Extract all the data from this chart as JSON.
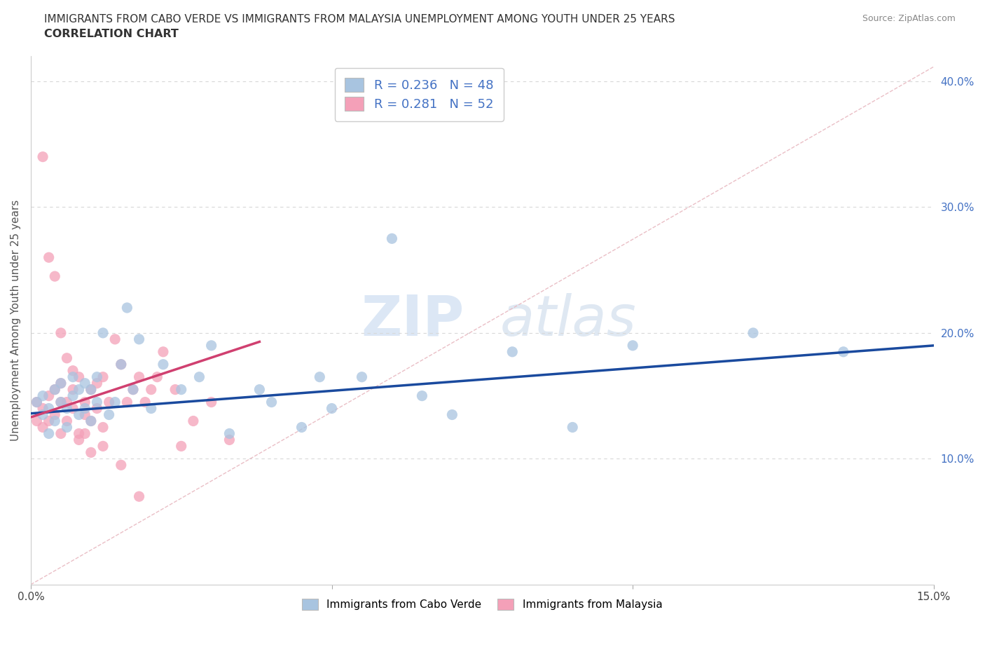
{
  "title_line1": "IMMIGRANTS FROM CABO VERDE VS IMMIGRANTS FROM MALAYSIA UNEMPLOYMENT AMONG YOUTH UNDER 25 YEARS",
  "title_line2": "CORRELATION CHART",
  "source": "Source: ZipAtlas.com",
  "ylabel": "Unemployment Among Youth under 25 years",
  "xmin": 0.0,
  "xmax": 0.15,
  "ymin": 0.0,
  "ymax": 0.42,
  "ytick_labels_right": [
    "10.0%",
    "20.0%",
    "30.0%",
    "40.0%"
  ],
  "ytick_vals_right": [
    0.1,
    0.2,
    0.3,
    0.4
  ],
  "cabo_verde_R": 0.236,
  "cabo_verde_N": 48,
  "malaysia_R": 0.281,
  "malaysia_N": 52,
  "cabo_verde_color": "#a8c4e0",
  "malaysia_color": "#f4a0b8",
  "cabo_verde_line_color": "#1a4a9e",
  "malaysia_line_color": "#d04070",
  "diagonal_line_color": "#e8b8c0",
  "cabo_verde_scatter_x": [
    0.001,
    0.002,
    0.002,
    0.003,
    0.003,
    0.004,
    0.004,
    0.005,
    0.005,
    0.006,
    0.006,
    0.007,
    0.007,
    0.008,
    0.008,
    0.009,
    0.009,
    0.01,
    0.01,
    0.011,
    0.011,
    0.012,
    0.013,
    0.014,
    0.015,
    0.016,
    0.017,
    0.018,
    0.02,
    0.022,
    0.025,
    0.028,
    0.03,
    0.033,
    0.038,
    0.04,
    0.045,
    0.048,
    0.05,
    0.055,
    0.06,
    0.065,
    0.07,
    0.08,
    0.09,
    0.1,
    0.12,
    0.135
  ],
  "cabo_verde_scatter_y": [
    0.145,
    0.135,
    0.15,
    0.14,
    0.12,
    0.155,
    0.13,
    0.145,
    0.16,
    0.14,
    0.125,
    0.15,
    0.165,
    0.135,
    0.155,
    0.14,
    0.16,
    0.13,
    0.155,
    0.145,
    0.165,
    0.2,
    0.135,
    0.145,
    0.175,
    0.22,
    0.155,
    0.195,
    0.14,
    0.175,
    0.155,
    0.165,
    0.19,
    0.12,
    0.155,
    0.145,
    0.125,
    0.165,
    0.14,
    0.165,
    0.275,
    0.15,
    0.135,
    0.185,
    0.125,
    0.19,
    0.2,
    0.185
  ],
  "malaysia_scatter_x": [
    0.001,
    0.001,
    0.002,
    0.002,
    0.003,
    0.003,
    0.004,
    0.004,
    0.005,
    0.005,
    0.005,
    0.006,
    0.006,
    0.007,
    0.007,
    0.008,
    0.008,
    0.009,
    0.009,
    0.01,
    0.01,
    0.011,
    0.011,
    0.012,
    0.012,
    0.013,
    0.014,
    0.015,
    0.016,
    0.017,
    0.018,
    0.019,
    0.02,
    0.021,
    0.022,
    0.024,
    0.025,
    0.027,
    0.03,
    0.033,
    0.002,
    0.003,
    0.004,
    0.005,
    0.006,
    0.007,
    0.008,
    0.009,
    0.01,
    0.012,
    0.015,
    0.018
  ],
  "malaysia_scatter_y": [
    0.13,
    0.145,
    0.125,
    0.14,
    0.13,
    0.15,
    0.155,
    0.135,
    0.145,
    0.12,
    0.16,
    0.145,
    0.13,
    0.155,
    0.14,
    0.12,
    0.165,
    0.135,
    0.145,
    0.13,
    0.155,
    0.14,
    0.16,
    0.165,
    0.125,
    0.145,
    0.195,
    0.175,
    0.145,
    0.155,
    0.165,
    0.145,
    0.155,
    0.165,
    0.185,
    0.155,
    0.11,
    0.13,
    0.145,
    0.115,
    0.34,
    0.26,
    0.245,
    0.2,
    0.18,
    0.17,
    0.115,
    0.12,
    0.105,
    0.11,
    0.095,
    0.07
  ],
  "cabo_verde_line_x0": 0.0,
  "cabo_verde_line_y0": 0.136,
  "cabo_verde_line_x1": 0.15,
  "cabo_verde_line_y1": 0.19,
  "malaysia_line_x0": 0.0,
  "malaysia_line_y0": 0.133,
  "malaysia_line_x1": 0.038,
  "malaysia_line_y1": 0.193,
  "watermark_zip": "ZIP",
  "watermark_atlas": "atlas",
  "background_color": "#ffffff",
  "grid_color": "#d8d8d8"
}
